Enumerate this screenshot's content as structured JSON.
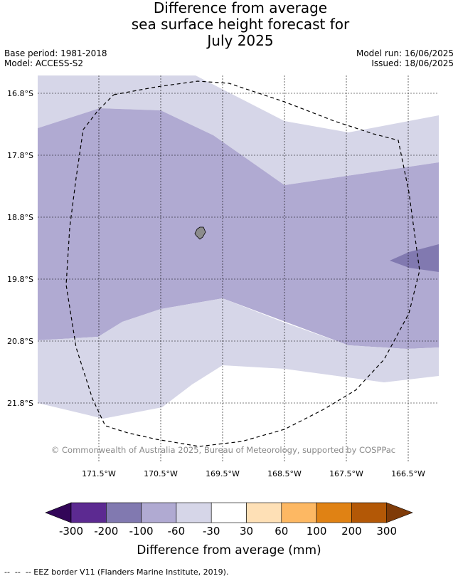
{
  "title": {
    "line1": "Difference from average",
    "line2": "sea surface height forecast for",
    "line3": "July 2025"
  },
  "meta": {
    "base_period": "Base period: 1981-2018",
    "model": "Model: ACCESS-S2",
    "model_run": "Model run: 16/06/2025",
    "issued": "Issued: 18/06/2025"
  },
  "map": {
    "lat_labels": [
      "16.8°S",
      "17.8°S",
      "18.8°S",
      "19.8°S",
      "20.8°S",
      "21.8°S"
    ],
    "lon_labels": [
      "171.5°W",
      "170.5°W",
      "169.5°W",
      "168.5°W",
      "167.5°W",
      "166.5°W"
    ],
    "copyright": "© Commonwealth of Australia 2025, Bureau of Meteorology, supported by COSPPac",
    "colors": {
      "band_light": "#d6d6e8",
      "band_mid": "#b0aad2",
      "band_dark": "#8179b0",
      "land": "#8c8c8c",
      "eez_line": "#000000"
    }
  },
  "colorbar": {
    "ticks": [
      "-300",
      "-200",
      "-100",
      "-60",
      "-30",
      "30",
      "60",
      "100",
      "200",
      "300"
    ],
    "label": "Difference from average (mm)",
    "colors": [
      "#320658",
      "#5c2a91",
      "#8179b0",
      "#b0aad2",
      "#d6d6e8",
      "#ffffff",
      "#fee0b6",
      "#fdb863",
      "#e08214",
      "#b35806",
      "#7f3b08"
    ]
  },
  "footnote": "--  --  -- EEZ border V11 (Flanders Marine Institute, 2019)."
}
